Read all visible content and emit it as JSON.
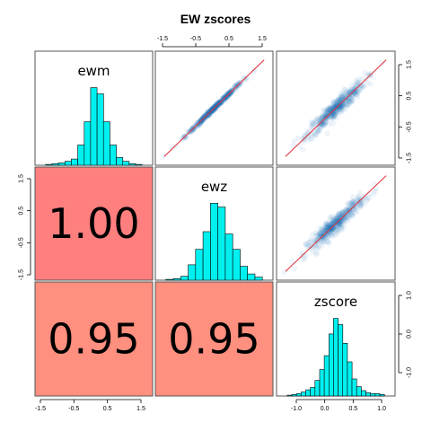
{
  "chart_data": {
    "type": "scatter",
    "title": "EW zscores",
    "variables": [
      "ewm",
      "ewz",
      "zscore"
    ],
    "correlations": [
      {
        "row": 2,
        "col": 1,
        "value": "1.00",
        "color": "#ff7f7f"
      },
      {
        "row": 3,
        "col": 1,
        "value": "0.95",
        "color": "#ff8f7f"
      },
      {
        "row": 3,
        "col": 2,
        "value": "0.95",
        "color": "#ff8f7f"
      }
    ],
    "axis_ticks": {
      "top_col2": [
        "-1.5",
        "-0.5",
        "0.5",
        "1.5"
      ],
      "bottom_col1": [
        "-1.5",
        "-0.5",
        "0.5",
        "1.5"
      ],
      "bottom_col3": [
        "-1.0",
        "0.0",
        "0.5",
        "1.0"
      ],
      "right_row1": [
        "1.5",
        "0.5",
        "-0.5",
        "-1.5"
      ],
      "left_row2": [
        "1.5",
        "0.5",
        "-0.5",
        "-1.5"
      ],
      "right_row3": [
        "1.0",
        "0.0",
        "-1.0"
      ]
    },
    "histograms": {
      "ewm": [
        0.01,
        0.02,
        0.03,
        0.05,
        0.08,
        0.26,
        0.56,
        1.0,
        0.92,
        0.56,
        0.26,
        0.1,
        0.05,
        0.02,
        0.01
      ],
      "ewz": [
        0.01,
        0.02,
        0.05,
        0.2,
        0.4,
        0.63,
        1.0,
        0.95,
        0.6,
        0.4,
        0.18,
        0.08,
        0.04
      ],
      "zscore": [
        0.01,
        0.02,
        0.03,
        0.05,
        0.08,
        0.11,
        0.2,
        0.34,
        0.52,
        0.8,
        1.0,
        0.92,
        0.68,
        0.44,
        0.22,
        0.12,
        0.07,
        0.04,
        0.03,
        0.03,
        0.02
      ]
    },
    "colors": {
      "hist_fill": "#00f0f0",
      "scatter": "#2171b5",
      "fit_line": "#e0303a"
    },
    "grid": false
  }
}
